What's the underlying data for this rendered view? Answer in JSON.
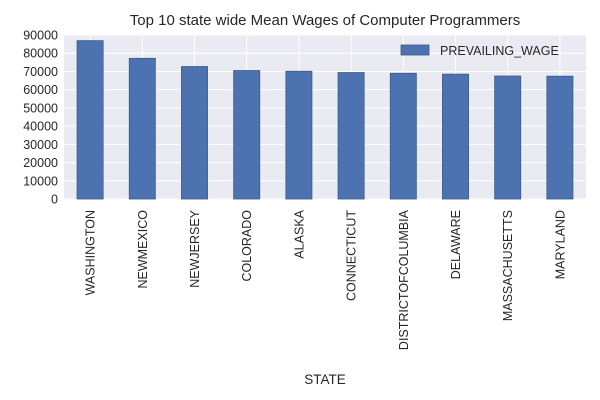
{
  "chart_data": {
    "type": "bar",
    "title": "Top 10 state wide Mean Wages of Computer Programmers",
    "xlabel": "STATE",
    "ylabel": "",
    "categories": [
      "WASHINGTON",
      "NEWMEXICO",
      "NEWJERSEY",
      "COLORADO",
      "ALASKA",
      "CONNECTICUT",
      "DISTRICTOFCOLUMBIA",
      "DELAWARE",
      "MASSACHUSETTS",
      "MARYLAND"
    ],
    "series": [
      {
        "name": "PREVAILING_WAGE",
        "values": [
          86900,
          77200,
          72700,
          70500,
          70100,
          69400,
          69000,
          68500,
          67500,
          67400
        ],
        "color": "#4c72b0"
      }
    ],
    "yticks": [
      "0",
      "10000",
      "20000",
      "30000",
      "40000",
      "50000",
      "60000",
      "70000",
      "80000",
      "90000"
    ],
    "ylim": [
      0,
      90000
    ],
    "grid": true,
    "legend_position": "top-right",
    "colors": {
      "plot_background": "#eaeaf2",
      "grid": "#ffffff",
      "bar": "#4c72b0",
      "bar_edge": "#3b5a8a"
    }
  }
}
